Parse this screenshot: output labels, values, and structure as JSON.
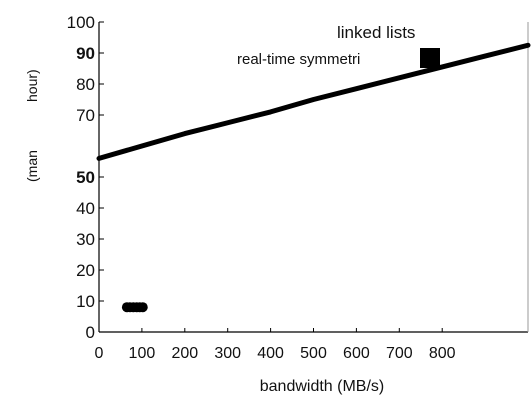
{
  "chart_data": {
    "type": "line",
    "xlabel": "bandwidth (MB/s)",
    "ylabel_fragments": [
      "(man",
      "hour)"
    ],
    "xlim": [
      0,
      1000
    ],
    "ylim": [
      0,
      100
    ],
    "x_ticks": [
      "0",
      "100",
      "200",
      "300",
      "400",
      "500",
      "600",
      "700",
      "800"
    ],
    "x_tick_values": [
      0,
      100,
      200,
      300,
      400,
      500,
      600,
      700,
      800
    ],
    "y_ticks": [
      "0",
      "10",
      "20",
      "30",
      "40",
      "50",
      "70",
      "80",
      "90",
      "100"
    ],
    "y_tick_values": [
      0,
      10,
      20,
      30,
      40,
      50,
      70,
      80,
      90,
      100
    ],
    "y_tick_bold": [
      "50",
      "90"
    ],
    "grid": false,
    "legend_position": "top-right",
    "legend": [
      {
        "label": "linked lists",
        "marker": "none"
      },
      {
        "label": "real-time symmetri",
        "marker": "filled-square"
      }
    ],
    "series": [
      {
        "name": "linked lists",
        "style": "thick-line",
        "x": [
          0,
          100,
          200,
          300,
          400,
          500,
          600,
          700,
          800,
          900,
          1000
        ],
        "y": [
          56,
          60,
          64,
          67.5,
          71,
          75,
          78.5,
          82,
          85.5,
          89,
          92.5
        ]
      },
      {
        "name": "real-time symmetri",
        "style": "dot-cluster",
        "x": [
          65,
          72,
          80,
          88,
          95,
          102
        ],
        "y": [
          8,
          8,
          8,
          8,
          8,
          8
        ]
      }
    ],
    "colors": {
      "line": "#000000",
      "axis": "#000000"
    }
  }
}
